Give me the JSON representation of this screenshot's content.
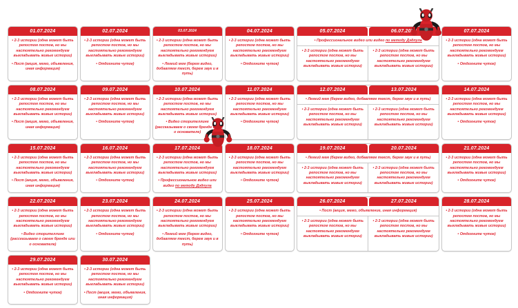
{
  "colors": {
    "header_bg": "#d8232a",
    "header_text": "#ffffff",
    "bullet_text": "#e02530",
    "card_border": "#c6c6c6",
    "page_bg": "#ffffff"
  },
  "stickers": [
    {
      "name": "deadpool-thumbs-up-sticker",
      "location": "over header 06.07.2024"
    },
    {
      "name": "deadpool-thumbs-up-sticker",
      "location": "near header 17.07.2024"
    }
  ],
  "calendar": {
    "rows": [
      {
        "cells": [
          {
            "type": "single",
            "date": "01.07.2024",
            "bullets": [
              {
                "text": "2-3 истории (одна может быть репостом постов, но мы настоятельно рекомендуем выкладывать живые истории)"
              },
              {
                "text": "Пост (акция, мемо, объявления, иная информация)"
              }
            ]
          },
          {
            "type": "single",
            "date": "02.07.2024",
            "bullets": [
              {
                "text": "2-3 истории (одна может быть репостом постов, но мы настоятельно рекомендуем выкладывать живые истории)"
              },
              {
                "text": "Отдохните чуток)"
              }
            ]
          },
          {
            "type": "single",
            "date": "03.07.2024",
            "small_header": true,
            "bullets": [
              {
                "text": "2-3 истории (одна может быть репостом постов, но мы настоятельно рекомендуем выкладывать живые истории)"
              },
              {
                "text": "Легкий мем (берем видео, добавляем текст, берем звук и в путь)"
              }
            ]
          },
          {
            "type": "single",
            "date": "04.07.2024",
            "bullets": [
              {
                "text": "2-3 истории (одна может быть репостом постов, но мы настоятельно рекомендуем выкладывать живые истории)"
              },
              {
                "text": "Отдохните чуток)"
              }
            ]
          },
          {
            "type": "merged",
            "dates": [
              "05.07.2024",
              "06.07.2024"
            ],
            "shared_bullet": {
              "text": "Профессиональное видео или видео ",
              "underline": "по методу Дэдпула"
            },
            "sub_bullets": [
              [
                {
                  "text": "2-3 истории (одна может быть репостом постов, но мы настоятельно рекомендуем выкладывать живые истории)"
                }
              ],
              [
                {
                  "text": "2-3 истории (одна может быть репостом постов, но мы настоятельно рекомендуем выкладывать живые истории)"
                }
              ]
            ]
          },
          {
            "type": "single",
            "date": "07.07.2024",
            "bullets": [
              {
                "text": "2-3 истории (одна может быть репостом постов, но мы настоятельно рекомендуем выкладывать живые истории)"
              },
              {
                "text": "Отдохните чуток)"
              }
            ]
          }
        ]
      },
      {
        "cells": [
          {
            "type": "single",
            "date": "08.07.2024",
            "bullets": [
              {
                "text": "2-3 истории (одна может быть репостом постов, но мы настоятельно рекомендуем выкладывать живые истории)"
              },
              {
                "text": "Пост (акция, мемо, объявления, иная информация)"
              }
            ]
          },
          {
            "type": "single",
            "date": "09.07.2024",
            "bullets": [
              {
                "text": "2-3 истории (одна может быть репостом постов, но мы настоятельно рекомендуем выкладывать живые истории)"
              },
              {
                "text": "Отдохните чуток)"
              }
            ]
          },
          {
            "type": "single",
            "date": "10.07.2024",
            "bullets": [
              {
                "text": "2-3 истории (одна может быть репостом постов, но мы настоятельно рекомендуем выкладывать живые истории)"
              },
              {
                "text": "Видео сторителлинг (рассказываем о своем бренде или о основателе)"
              }
            ]
          },
          {
            "type": "single",
            "date": "11.07.2024",
            "bullets": [
              {
                "text": "2-3 истории (одна может быть репостом постов, но мы настоятельно рекомендуем выкладывать живые истории)"
              },
              {
                "text": "Отдохните чуток)"
              }
            ]
          },
          {
            "type": "merged",
            "dates": [
              "12.07.2024",
              "13.07.2024"
            ],
            "shared_bullet": {
              "text": "Легкий мем (берем видео, добавляем текст, берем звук и в путь)"
            },
            "sub_bullets": [
              [
                {
                  "text": "2-3 истории (одна может быть репостом постов, но мы настоятельно рекомендуем выкладывать живые истории)"
                }
              ],
              [
                {
                  "text": "2-3 истории (одна может быть репостом постов, но мы настоятельно рекомендуем выкладывать живые истории)"
                }
              ]
            ]
          },
          {
            "type": "single",
            "date": "14.07.2024",
            "bullets": [
              {
                "text": "2-3 истории (одна может быть репостом постов, но мы настоятельно рекомендуем выкладывать живые истории)"
              },
              {
                "text": "Отдохните чуток)"
              }
            ]
          }
        ]
      },
      {
        "cells": [
          {
            "type": "single",
            "date": "15.07.2024",
            "bullets": [
              {
                "text": "2-3 истории (одна может быть репостом постов, но мы настоятельно рекомендуем выкладывать живые истории)"
              },
              {
                "text": "Пост (акция, мемо, объявления, иная информация)"
              }
            ]
          },
          {
            "type": "single",
            "date": "16.07.2024",
            "bullets": [
              {
                "text": "2-3 истории (одна может быть репостом постов, но мы настоятельно рекомендуем выкладывать живые истории)"
              },
              {
                "text": "Отдохните чуток)"
              }
            ]
          },
          {
            "type": "single",
            "date": "17.07.2024",
            "bullets": [
              {
                "text": "2-3 истории (одна может быть репостом постов, но мы настоятельно рекомендуем выкладывать живые истории)"
              },
              {
                "text": "Профессиональное видео или видео ",
                "underline": "по методу Дэдпула"
              }
            ]
          },
          {
            "type": "single",
            "date": "18.07.2024",
            "bullets": [
              {
                "text": "2-3 истории (одна может быть репостом постов, но мы настоятельно рекомендуем выкладывать живые истории)"
              },
              {
                "text": "Отдохните чуток)"
              }
            ]
          },
          {
            "type": "merged",
            "dates": [
              "19.07.2024",
              "20.07.2024"
            ],
            "shared_bullet": {
              "text": "Легкий мем (берем видео, добавляем текст, берем звук и в путь)"
            },
            "sub_bullets": [
              [
                {
                  "text": "2-3 истории (одна может быть репостом постов, но мы настоятельно рекомендуем выкладывать живые истории)"
                }
              ],
              [
                {
                  "text": "2-3 истории (одна может быть репостом постов, но мы настоятельно рекомендуем выкладывать живые истории)"
                }
              ]
            ]
          },
          {
            "type": "single",
            "date": "21.07.2024",
            "bullets": [
              {
                "text": "2-3 истории (одна может быть репостом постов, но мы настоятельно рекомендуем выкладывать живые истории)"
              },
              {
                "text": "Отдохните чуток)"
              }
            ]
          }
        ]
      },
      {
        "cells": [
          {
            "type": "single",
            "date": "22.07.2024",
            "bullets": [
              {
                "text": "2-3 истории (одна может быть репостом постов, но мы настоятельно рекомендуем выкладывать живые истории)"
              },
              {
                "text": "Видео сторителлинг (рассказываем о своем бренде или о основателе)"
              }
            ]
          },
          {
            "type": "single",
            "date": "23.07.2024",
            "bullets": [
              {
                "text": "2-3 истории (одна может быть репостом постов, но мы настоятельно рекомендуем выкладывать живые истории)"
              },
              {
                "text": "Отдохните чуток)"
              }
            ]
          },
          {
            "type": "single",
            "date": "24.07.2024",
            "bullets": [
              {
                "text": "2-3 истории (одна может быть репостом постов, но мы настоятельно рекомендуем выкладывать живые истории)"
              },
              {
                "text": "Легкий мем (берем видео, добавляем текст, берем звук и в путь)"
              }
            ]
          },
          {
            "type": "single",
            "date": "25.07.2024",
            "bullets": [
              {
                "text": "2-3 истории (одна может быть репостом постов, но мы настоятельно рекомендуем выкладывать живые истории)"
              },
              {
                "text": "Отдохните чуток)"
              }
            ]
          },
          {
            "type": "merged",
            "dates": [
              "26.07.2024",
              "27.07.2024"
            ],
            "shared_bullet": {
              "text": "Пост (акция, мемо, объявление, иная информация)"
            },
            "sub_bullets": [
              [
                {
                  "text": "2-3 истории (одна может быть репостом постов, но мы настоятельно рекомендуем выкладывать живые истории)"
                }
              ],
              [
                {
                  "text": "2-3 истории (одна может быть репостом постов, но мы настоятельно рекомендуем выкладывать живые истории)"
                }
              ]
            ]
          },
          {
            "type": "single",
            "date": "28.07.2024",
            "bullets": [
              {
                "text": "2-3 истории (одна может быть репостом постов, но мы настоятельно рекомендуем выкладывать живые истории)"
              },
              {
                "text": "Отдохните чуток)"
              }
            ]
          }
        ]
      },
      {
        "cells": [
          {
            "type": "single",
            "date": "29.07.2024",
            "bullets": [
              {
                "text": "2-3 истории (одна может быть репостом постов, но мы настоятельно рекомендуем выкладывать живые истории)"
              },
              {
                "text": "Отдохните чуток)"
              }
            ]
          },
          {
            "type": "single",
            "date": "30.07.2024",
            "bullets": [
              {
                "text": "2-3 истории (одна может быть репостом постов, но мы настоятельно рекомендуем выкладывать живые истории)"
              },
              {
                "text": "Пост (акция, мемо, объявления, иная информация)"
              }
            ]
          }
        ]
      }
    ]
  }
}
